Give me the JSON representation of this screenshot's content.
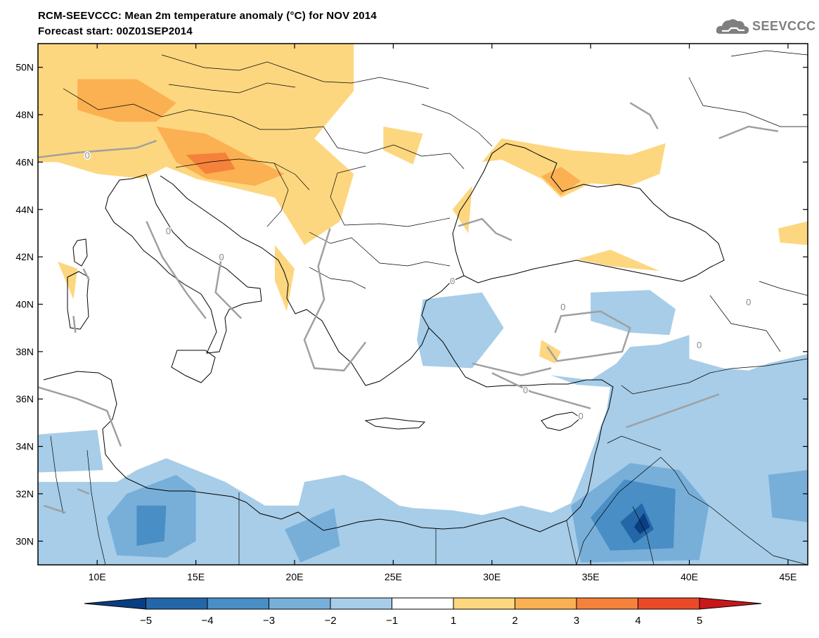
{
  "header": {
    "title": "RCM-SEEVCCC: Mean 2m temperature anomaly (°C) for NOV 2014",
    "subtitle": "Forecast start: 00Z01SEP2014"
  },
  "logo": {
    "text": "SEEVCCC",
    "icon": "cloud-icon",
    "color": "#7f7f7f"
  },
  "chart_data": {
    "type": "heatmap",
    "title": "RCM-SEEVCCC: Mean 2m temperature anomaly (°C) for NOV 2014",
    "subtitle": "Forecast start: 00Z01SEP2014",
    "lon_range": [
      7,
      46
    ],
    "lat_range": [
      29,
      51
    ],
    "x_ticks": [
      "10E",
      "15E",
      "20E",
      "25E",
      "30E",
      "35E",
      "40E",
      "45E"
    ],
    "x_tick_values": [
      10,
      15,
      20,
      25,
      30,
      35,
      40,
      45
    ],
    "y_ticks": [
      "50N",
      "48N",
      "46N",
      "44N",
      "42N",
      "40N",
      "38N",
      "36N",
      "34N",
      "32N",
      "30N"
    ],
    "y_tick_values": [
      50,
      48,
      46,
      44,
      42,
      40,
      38,
      36,
      34,
      32,
      30
    ],
    "zero_contour_label": "0",
    "colorbar": {
      "boundaries": [
        "−5",
        "−4",
        "−3",
        "−2",
        "−1",
        "1",
        "2",
        "3",
        "4",
        "5"
      ],
      "colors": [
        "#0a3e82",
        "#2467a8",
        "#4a8ec6",
        "#78afd9",
        "#a7cde8",
        "#ffffff",
        "#fdd77f",
        "#fbb052",
        "#f5823a",
        "#ea4a27",
        "#c9181b"
      ]
    },
    "anomaly_regions": [
      {
        "level": 1,
        "lonlat": [
          [
            7,
            51
          ],
          [
            23,
            51
          ],
          [
            23,
            49
          ],
          [
            21,
            47
          ],
          [
            23,
            45.5
          ],
          [
            22.3,
            43.5
          ],
          [
            20.5,
            42.5
          ],
          [
            19,
            44.5
          ],
          [
            15,
            45.3
          ],
          [
            13.5,
            45.8
          ],
          [
            12.3,
            45.3
          ],
          [
            10,
            45.5
          ],
          [
            8,
            46
          ],
          [
            7,
            46
          ]
        ]
      },
      {
        "level": 2,
        "lonlat": [
          [
            9,
            49.5
          ],
          [
            12,
            49.5
          ],
          [
            14,
            48.5
          ],
          [
            13,
            47.7
          ],
          [
            11,
            47.7
          ],
          [
            9,
            48.2
          ]
        ]
      },
      {
        "level": 2,
        "lonlat": [
          [
            13,
            47.5
          ],
          [
            15.5,
            47.2
          ],
          [
            17.8,
            46.2
          ],
          [
            19.5,
            45.5
          ],
          [
            18,
            45
          ],
          [
            15.5,
            45.3
          ],
          [
            14,
            46
          ]
        ]
      },
      {
        "level": 3,
        "lonlat": [
          [
            14.5,
            46.3
          ],
          [
            16.5,
            46.4
          ],
          [
            17,
            45.7
          ],
          [
            15.5,
            45.5
          ]
        ]
      },
      {
        "level": 1,
        "lonlat": [
          [
            24.5,
            47.5
          ],
          [
            26.5,
            47.2
          ],
          [
            26,
            45.9
          ],
          [
            24.5,
            46.5
          ]
        ]
      },
      {
        "level": 1,
        "lonlat": [
          [
            29.5,
            46
          ],
          [
            30.5,
            47
          ],
          [
            34,
            46.5
          ],
          [
            37,
            46.3
          ],
          [
            38.8,
            46.8
          ],
          [
            38.5,
            45.5
          ],
          [
            37,
            45
          ],
          [
            35,
            45.1
          ],
          [
            33.5,
            44.5
          ],
          [
            32.5,
            45.3
          ],
          [
            30.5,
            46.1
          ]
        ]
      },
      {
        "level": 2,
        "lonlat": [
          [
            32.5,
            45.4
          ],
          [
            33.5,
            45.8
          ],
          [
            34.5,
            45.2
          ],
          [
            33.5,
            44.6
          ]
        ]
      },
      {
        "level": 1,
        "lonlat": [
          [
            28,
            44
          ],
          [
            29,
            45
          ],
          [
            28.8,
            43
          ]
        ]
      },
      {
        "level": 1,
        "lonlat": [
          [
            19,
            42.5
          ],
          [
            20,
            41.5
          ],
          [
            19.6,
            39.7
          ],
          [
            19,
            41
          ]
        ]
      },
      {
        "level": 1,
        "lonlat": [
          [
            34.3,
            41.9
          ],
          [
            36,
            42.3
          ],
          [
            38.5,
            41.4
          ],
          [
            36,
            41.6
          ]
        ]
      },
      {
        "level": 1,
        "lonlat": [
          [
            32.5,
            38.5
          ],
          [
            33.5,
            38
          ],
          [
            33.2,
            37.5
          ],
          [
            32.4,
            37.8
          ]
        ]
      },
      {
        "level": 1,
        "lonlat": [
          [
            44.5,
            43.2
          ],
          [
            46,
            43.5
          ],
          [
            46,
            42.5
          ],
          [
            44.6,
            42.6
          ]
        ]
      },
      {
        "level": 1,
        "lonlat": [
          [
            8,
            41.8
          ],
          [
            9,
            41.5
          ],
          [
            8.8,
            40.2
          ]
        ]
      },
      {
        "level": -1,
        "lonlat": [
          [
            26.5,
            40.2
          ],
          [
            29.5,
            40.5
          ],
          [
            30.6,
            39
          ],
          [
            29,
            37.3
          ],
          [
            26.5,
            37.4
          ],
          [
            26.2,
            38.5
          ]
        ]
      },
      {
        "level": -1,
        "lonlat": [
          [
            33,
            37
          ],
          [
            35,
            36.8
          ],
          [
            36.3,
            37.5
          ],
          [
            37,
            38.2
          ],
          [
            38.5,
            38.3
          ],
          [
            40,
            38.7
          ],
          [
            40,
            37.7
          ],
          [
            41.7,
            37.3
          ],
          [
            43,
            37.2
          ],
          [
            44,
            37.5
          ],
          [
            46,
            37.9
          ],
          [
            46,
            29
          ],
          [
            7,
            29
          ],
          [
            7,
            32.5
          ],
          [
            11,
            32.5
          ],
          [
            12,
            33
          ],
          [
            13.5,
            33.5
          ],
          [
            16.5,
            32.5
          ],
          [
            18.5,
            31.5
          ],
          [
            20.2,
            31.5
          ],
          [
            20.5,
            32.5
          ],
          [
            22.5,
            32.8
          ],
          [
            23.5,
            32.5
          ],
          [
            25.3,
            31.5
          ],
          [
            26,
            31.4
          ],
          [
            28,
            31.3
          ],
          [
            29.5,
            31.1
          ],
          [
            31.5,
            31.5
          ],
          [
            33,
            31.2
          ],
          [
            34,
            31.6
          ],
          [
            34.7,
            33
          ],
          [
            35.8,
            35.5
          ],
          [
            36,
            36.5
          ],
          [
            34.3,
            36.6
          ]
        ]
      },
      {
        "level": -1,
        "lonlat": [
          [
            35,
            40.5
          ],
          [
            38,
            40.6
          ],
          [
            39.3,
            39.8
          ],
          [
            39,
            38.7
          ],
          [
            37,
            38.8
          ],
          [
            35,
            39.3
          ]
        ]
      },
      {
        "level": -1,
        "lonlat": [
          [
            7,
            34.5
          ],
          [
            10,
            34.7
          ],
          [
            10.3,
            33
          ],
          [
            7,
            32.9
          ]
        ]
      },
      {
        "level": -2,
        "lonlat": [
          [
            11.5,
            32
          ],
          [
            14,
            32.8
          ],
          [
            15,
            32.2
          ],
          [
            15,
            30
          ],
          [
            13.5,
            29.3
          ],
          [
            11,
            29.4
          ],
          [
            10.5,
            31
          ]
        ]
      },
      {
        "level": -2,
        "lonlat": [
          [
            19.5,
            30.5
          ],
          [
            22,
            31.4
          ],
          [
            22.3,
            29.8
          ],
          [
            20.3,
            29.1
          ]
        ]
      },
      {
        "level": -2,
        "lonlat": [
          [
            34,
            31.5
          ],
          [
            37,
            33.3
          ],
          [
            39.5,
            33
          ],
          [
            41,
            31.5
          ],
          [
            40.5,
            29.2
          ],
          [
            34.5,
            29.1
          ]
        ]
      },
      {
        "level": -2,
        "lonlat": [
          [
            44,
            32.8
          ],
          [
            46,
            33
          ],
          [
            46,
            30.8
          ],
          [
            44.2,
            31
          ]
        ]
      },
      {
        "level": -3,
        "lonlat": [
          [
            35,
            31
          ],
          [
            36.7,
            32.6
          ],
          [
            39.3,
            32.2
          ],
          [
            39.2,
            29.7
          ],
          [
            36,
            29.6
          ]
        ]
      },
      {
        "level": -3,
        "lonlat": [
          [
            12,
            31.5
          ],
          [
            13.5,
            31.5
          ],
          [
            13.4,
            30
          ],
          [
            12,
            29.8
          ]
        ]
      },
      {
        "level": -4,
        "lonlat": [
          [
            36.5,
            30.8
          ],
          [
            37.6,
            31.6
          ],
          [
            38.2,
            30.5
          ],
          [
            37.2,
            29.9
          ]
        ]
      },
      {
        "level": -5,
        "lonlat": [
          [
            37.2,
            30.6
          ],
          [
            37.7,
            31.2
          ],
          [
            38,
            30.6
          ],
          [
            37.5,
            30.3
          ]
        ]
      }
    ],
    "zero_contours": [
      [
        [
          7,
          46.2
        ],
        [
          9,
          46.4
        ],
        [
          12,
          46.6
        ],
        [
          13,
          46.9
        ]
      ],
      [
        [
          12.5,
          43.5
        ],
        [
          13.3,
          42
        ],
        [
          14.5,
          40.5
        ],
        [
          15.5,
          39.4
        ]
      ],
      [
        [
          16.3,
          42
        ],
        [
          16,
          40.5
        ],
        [
          17.3,
          39.4
        ]
      ],
      [
        [
          21.8,
          43.2
        ],
        [
          21.2,
          41.6
        ],
        [
          21.5,
          40.2
        ],
        [
          20.5,
          38.5
        ],
        [
          21,
          37.3
        ],
        [
          22.5,
          37.2
        ],
        [
          23.6,
          38.4
        ]
      ],
      [
        [
          28.3,
          43.3
        ],
        [
          29.5,
          43.6
        ],
        [
          30.2,
          43
        ],
        [
          31,
          42.7
        ]
      ],
      [
        [
          33.2,
          38.8
        ],
        [
          33.5,
          39.5
        ],
        [
          35.5,
          39.7
        ],
        [
          37,
          39
        ],
        [
          36.6,
          38
        ],
        [
          35,
          37.8
        ],
        [
          33.3,
          37.6
        ],
        [
          32.8,
          38.2
        ]
      ],
      [
        [
          30,
          37.1
        ],
        [
          32,
          36.3
        ],
        [
          35,
          35.6
        ]
      ],
      [
        [
          36.8,
          34.8
        ],
        [
          39.5,
          35.6
        ],
        [
          41.5,
          36.2
        ]
      ],
      [
        [
          8.9,
          38.8
        ],
        [
          8.8,
          39.5
        ]
      ],
      [
        [
          9.3,
          41.5
        ],
        [
          9.6,
          41
        ]
      ],
      [
        [
          9,
          32.2
        ],
        [
          9.6,
          32
        ]
      ],
      [
        [
          37,
          48.5
        ],
        [
          38,
          48
        ],
        [
          38.4,
          47.4
        ]
      ],
      [
        [
          41.5,
          47
        ],
        [
          43,
          47.5
        ],
        [
          44.5,
          47.3
        ]
      ],
      [
        [
          7.3,
          31.5
        ],
        [
          8.4,
          31.2
        ]
      ],
      [
        [
          29,
          37.5
        ],
        [
          31.5,
          37
        ],
        [
          33,
          37.3
        ]
      ],
      [
        [
          7,
          36.5
        ],
        [
          9,
          36
        ],
        [
          10.5,
          35.5
        ],
        [
          11.2,
          34
        ]
      ]
    ],
    "zero_label_positions": [
      [
        9.5,
        46.3
      ],
      [
        13.6,
        43.1
      ],
      [
        16.3,
        42
      ],
      [
        28,
        41
      ],
      [
        33.6,
        39.9
      ],
      [
        31.7,
        36.4
      ],
      [
        34.5,
        35.3
      ],
      [
        43,
        40.1
      ],
      [
        40.5,
        38.3
      ]
    ]
  }
}
